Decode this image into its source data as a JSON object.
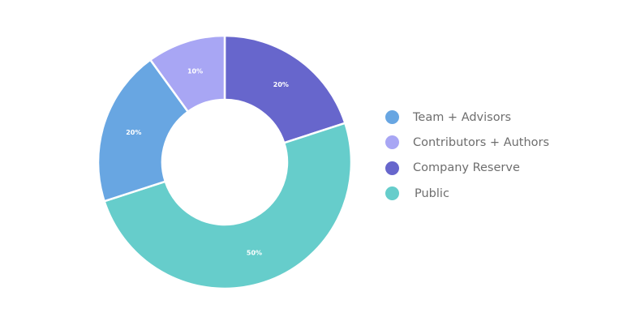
{
  "chart_data": {
    "type": "pie",
    "variant": "donut",
    "title": "",
    "legend_position": "right",
    "slices": [
      {
        "label": "Company Reserve",
        "value": 20,
        "data_label": "20%",
        "color": "#6766cc"
      },
      {
        "label": "Public",
        "value": 50,
        "data_label": "50%",
        "color": "#66cdcb"
      },
      {
        "label": "Team + Advisors",
        "value": 20,
        "data_label": "20%",
        "color": "#68a6e2"
      },
      {
        "label": "Contributors + Authors",
        "value": 10,
        "data_label": "10%",
        "color": "#a8a6f4"
      }
    ],
    "legend": [
      {
        "label": "Team + Advisors",
        "color": "#68a6e2"
      },
      {
        "label": "Contributors + Authors",
        "color": "#a8a6f4"
      },
      {
        "label": "Company Reserve",
        "color": "#6766cc"
      },
      {
        "label": "Public",
        "color": "#66cdcb"
      }
    ]
  }
}
